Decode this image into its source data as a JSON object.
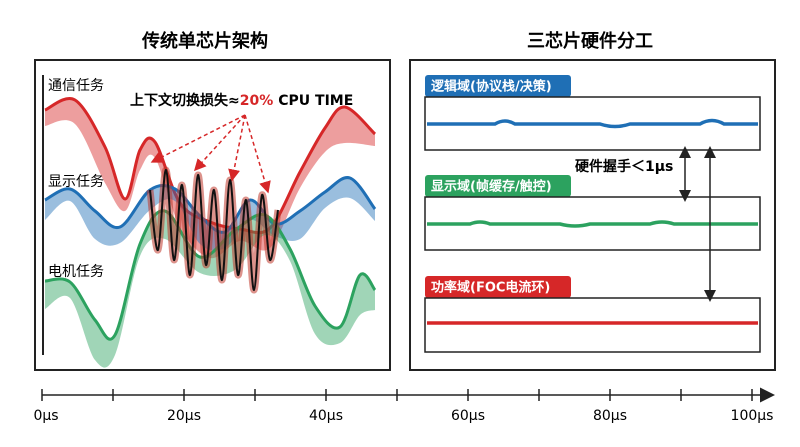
{
  "left_panel": {
    "title": "传统单芯片架构",
    "tasks": [
      "通信任务",
      "显示任务",
      "电机任务"
    ],
    "annotation": {
      "prefix": "上下文切换损失≈",
      "highlight": "20%",
      "suffix": "CPU TIME"
    }
  },
  "right_panel": {
    "title": "三芯片硬件分工",
    "domains": [
      "逻辑域(协议栈/决策)",
      "显示域(帧缓存/触控)",
      "功率域(FOC电流环)"
    ],
    "annotation": "硬件握手＜1μs"
  },
  "axis": {
    "ticks": [
      "0μs",
      "20μs",
      "40μs",
      "60μs",
      "80μs",
      "100μs"
    ]
  }
}
